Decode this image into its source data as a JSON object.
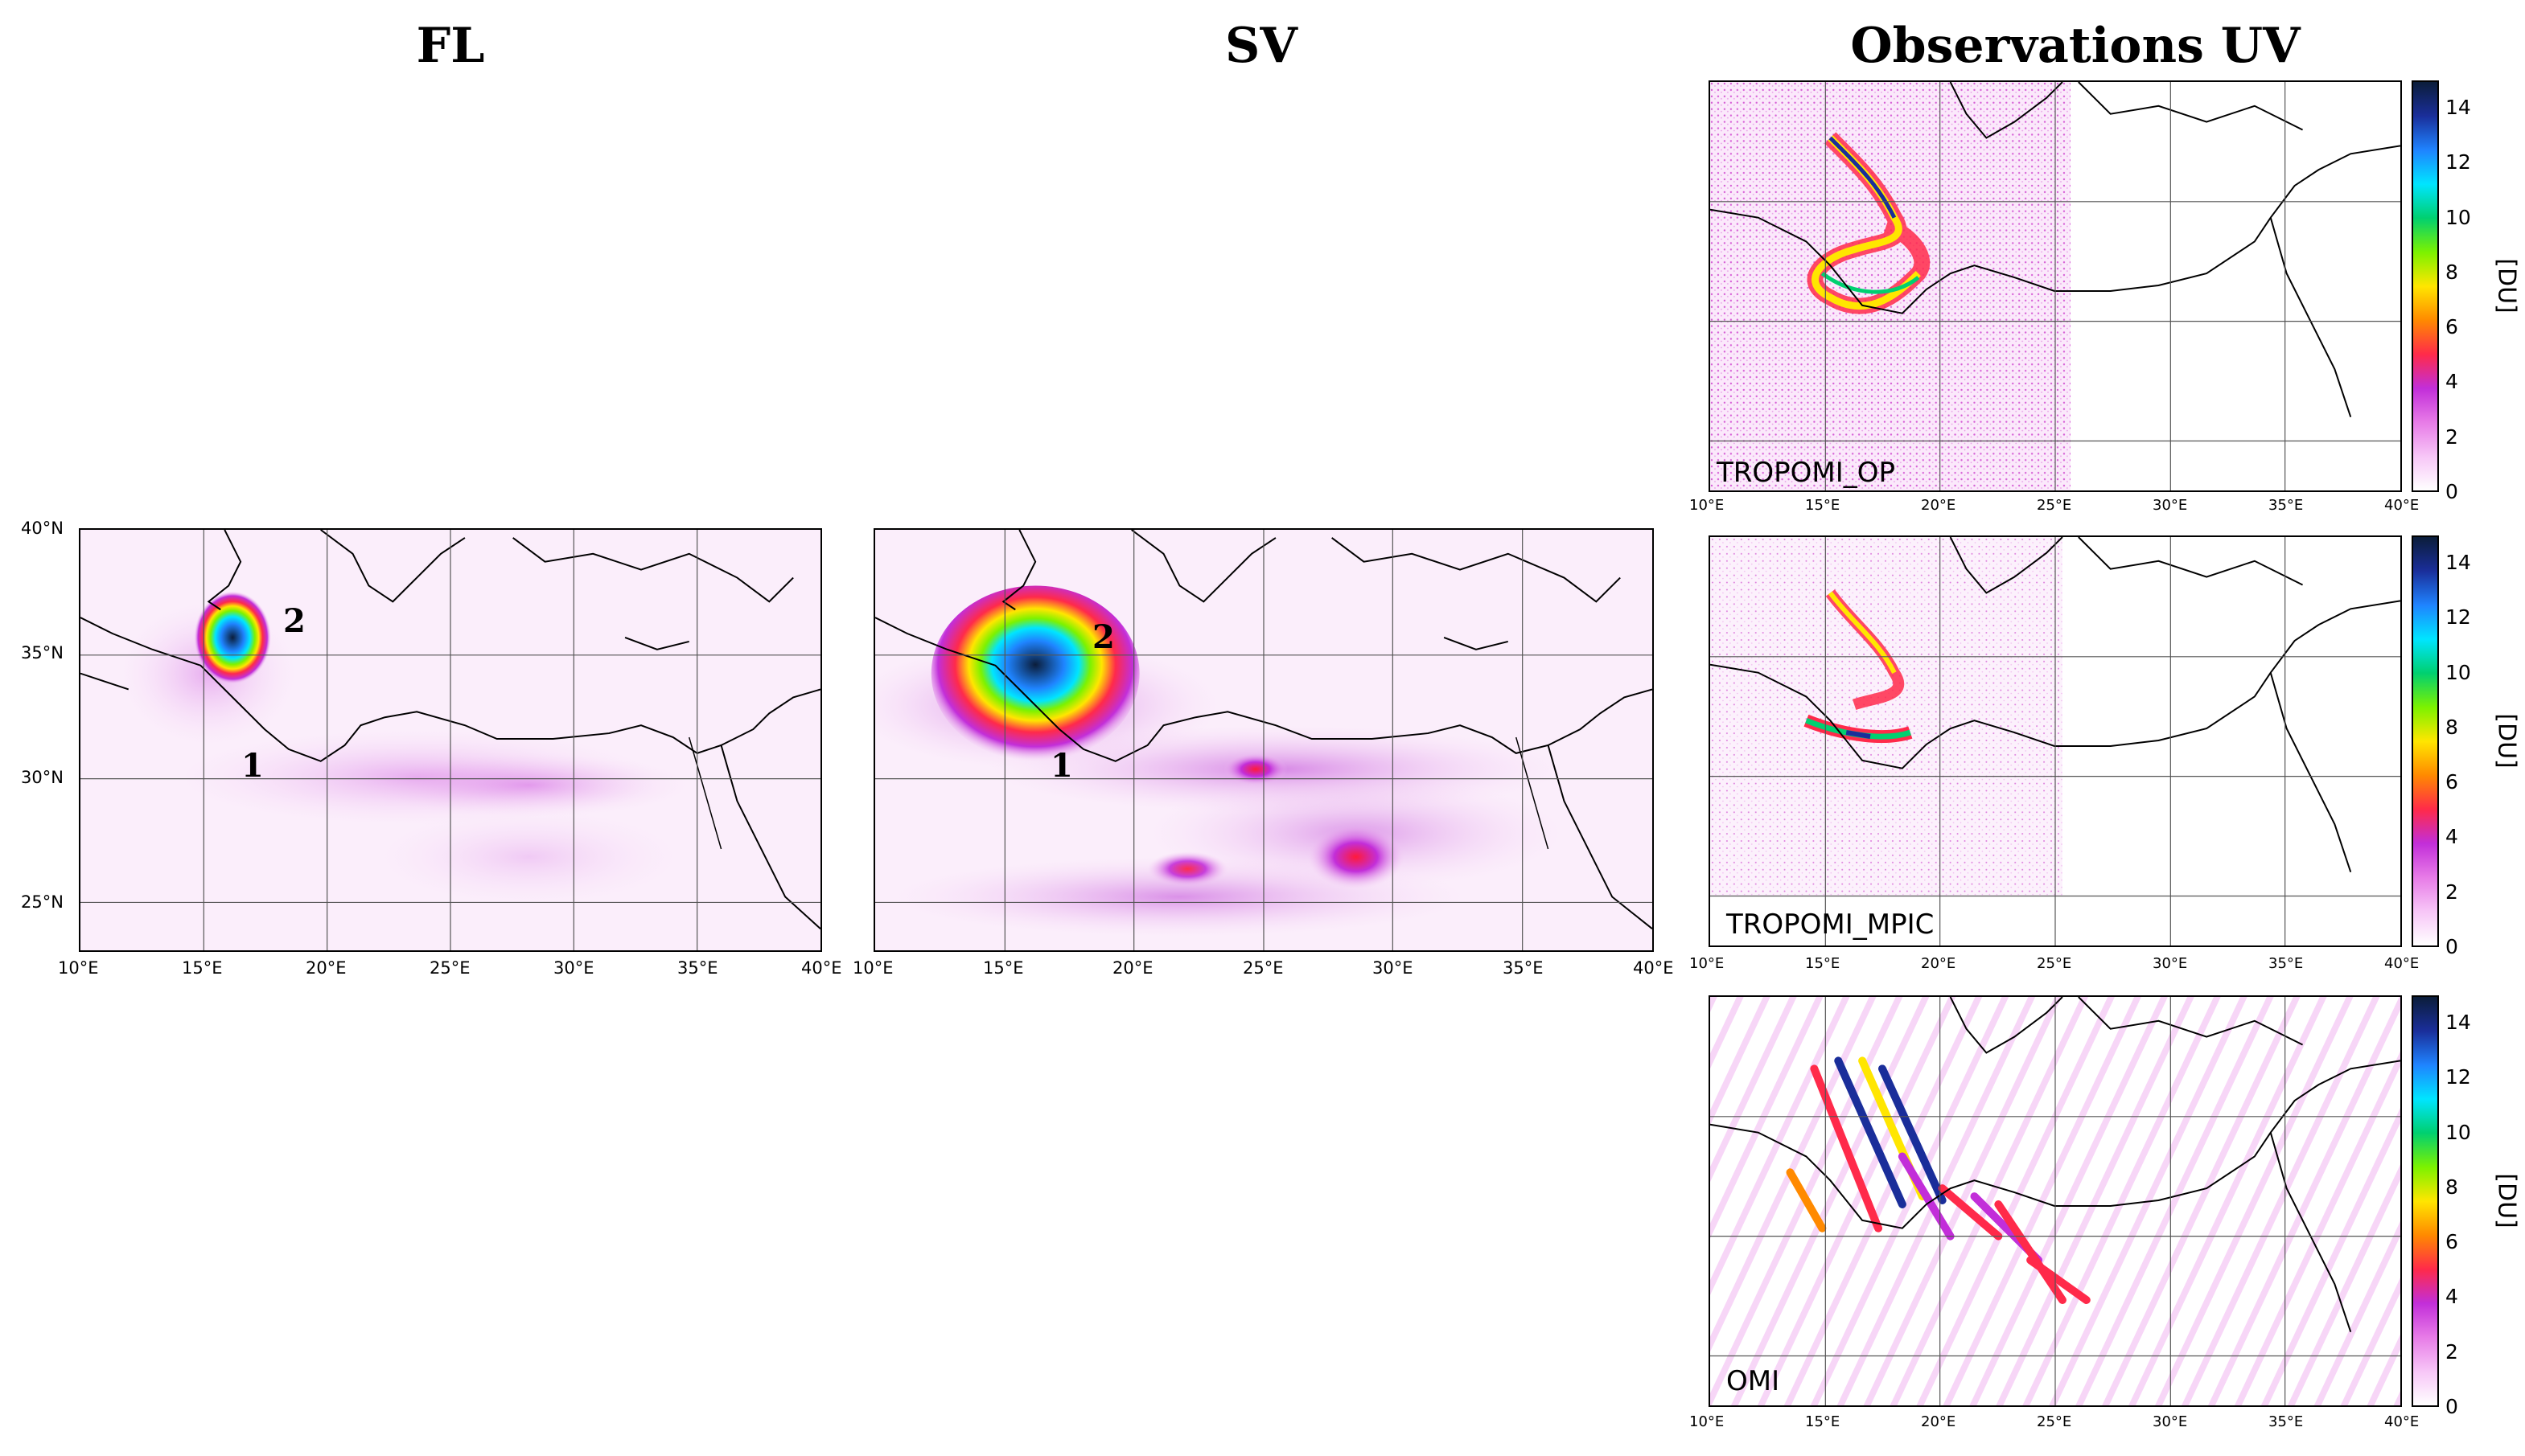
{
  "titles": {
    "fl": "FL",
    "sv": "SV",
    "obs": "Observations UV"
  },
  "lat_ticks": [
    "40°N",
    "35°N",
    "30°N",
    "25°N"
  ],
  "lon_ticks": [
    "10°E",
    "15°E",
    "20°E",
    "25°E",
    "30°E",
    "35°E",
    "40°E"
  ],
  "markers": {
    "one": "1",
    "two": "2"
  },
  "obs_panels": {
    "tropomi_op": "TROPOMI_OP",
    "tropomi_mpic": "TROPOMI_MPIC",
    "omi": "OMI"
  },
  "colorbar": {
    "ticks": [
      "0",
      "2",
      "4",
      "6",
      "8",
      "10",
      "12",
      "14"
    ],
    "unit": "[DU]",
    "range": [
      0,
      15
    ],
    "colors": [
      "#ffffff",
      "#f7c6f7",
      "#e77be7",
      "#c22ed9",
      "#ff2a4a",
      "#ff8a00",
      "#ffe600",
      "#7cf200",
      "#00d070",
      "#00e5ff",
      "#1f84ff",
      "#1a2e9a",
      "#0b1d3a"
    ]
  }
}
